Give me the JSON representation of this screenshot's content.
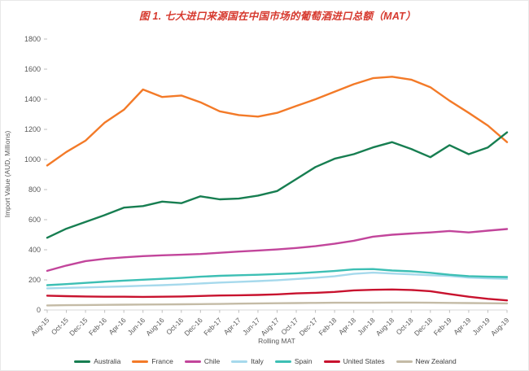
{
  "chart_data": {
    "type": "line",
    "title": "图 1. 七大进口来源国在中国市场的葡萄酒进口总额（MAT）",
    "xlabel": "Rolling MAT",
    "ylabel": "Import Value (AUD, Millions)",
    "ylim": [
      0,
      1800
    ],
    "ytick_step": 200,
    "grid": false,
    "legend_position": "bottom",
    "title_color": "#d6392e",
    "axis_color": "#d9d9d9",
    "tick_color": "#bfbfbf",
    "categories": [
      "Aug-15",
      "Oct-15",
      "Dec-15",
      "Feb-16",
      "Apr-16",
      "Jun-16",
      "Aug-16",
      "Oct-16",
      "Dec-16",
      "Feb-17",
      "Apr-17",
      "Jun-17",
      "Aug-17",
      "Oct-17",
      "Dec-17",
      "Feb-18",
      "Apr-18",
      "Jun-18",
      "Aug-18",
      "Oct-18",
      "Dec-18",
      "Feb-19",
      "Apr-19",
      "Jun-19",
      "Aug-19"
    ],
    "series": [
      {
        "name": "Australia",
        "color": "#177e51",
        "values": [
          480,
          540,
          585,
          630,
          680,
          690,
          720,
          710,
          755,
          735,
          740,
          760,
          790,
          870,
          950,
          1005,
          1035,
          1080,
          1115,
          1070,
          1015,
          1095,
          1035,
          1080,
          1180
        ]
      },
      {
        "name": "France",
        "color": "#f37a28",
        "values": [
          960,
          1050,
          1125,
          1245,
          1330,
          1465,
          1415,
          1425,
          1380,
          1320,
          1295,
          1285,
          1310,
          1355,
          1400,
          1450,
          1500,
          1540,
          1550,
          1530,
          1480,
          1390,
          1310,
          1225,
          1115
        ]
      },
      {
        "name": "Chile",
        "color": "#c2459b",
        "values": [
          260,
          295,
          325,
          340,
          350,
          358,
          363,
          367,
          372,
          380,
          388,
          395,
          402,
          412,
          424,
          440,
          460,
          487,
          500,
          508,
          515,
          525,
          515,
          527,
          538
        ]
      },
      {
        "name": "Italy",
        "color": "#a6d9ec",
        "values": [
          144,
          147,
          150,
          153,
          157,
          161,
          165,
          170,
          176,
          182,
          187,
          192,
          198,
          206,
          214,
          224,
          240,
          248,
          242,
          237,
          231,
          226,
          215,
          210,
          207
        ]
      },
      {
        "name": "Spain",
        "color": "#3dbfb4",
        "values": [
          165,
          172,
          180,
          188,
          195,
          201,
          207,
          213,
          221,
          227,
          231,
          234,
          239,
          244,
          251,
          259,
          270,
          272,
          262,
          257,
          247,
          234,
          225,
          221,
          219
        ]
      },
      {
        "name": "United States",
        "color": "#c8122e",
        "values": [
          95,
          92,
          90,
          88,
          88,
          87,
          88,
          90,
          93,
          96,
          98,
          100,
          104,
          110,
          114,
          120,
          130,
          134,
          136,
          133,
          125,
          106,
          88,
          74,
          64
        ]
      },
      {
        "name": "New Zealand",
        "color": "#c4bba6",
        "values": [
          30,
          32,
          33,
          34,
          35,
          36,
          37,
          38,
          39,
          40,
          42,
          44,
          45,
          46,
          47,
          48,
          48,
          48,
          49,
          49,
          48,
          47,
          46,
          45,
          44
        ]
      }
    ]
  }
}
